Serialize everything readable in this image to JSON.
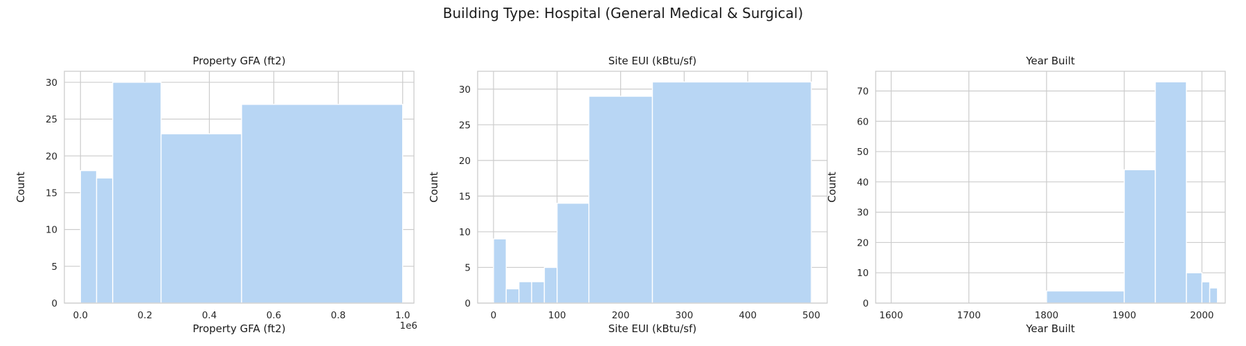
{
  "figure": {
    "suptitle": "Building Type: Hospital (General Medical & Surgical)"
  },
  "colors": {
    "bar": "#b8d6f4",
    "grid": "#cccccc",
    "background": "#ffffff"
  },
  "chart_data": [
    {
      "type": "bar",
      "subtype": "histogram",
      "title": "Property GFA (ft2)",
      "xlabel": "Property GFA (ft2)",
      "ylabel": "Count",
      "x_offset_label": "1e6",
      "xlim": [
        -0.05,
        1.035
      ],
      "ylim": [
        0,
        31.5
      ],
      "xticks": [
        0.0,
        0.2,
        0.4,
        0.6,
        0.8,
        1.0
      ],
      "xtick_labels": [
        "0.0",
        "0.2",
        "0.4",
        "0.6",
        "0.8",
        "1.0"
      ],
      "yticks": [
        0,
        5,
        10,
        15,
        20,
        25,
        30
      ],
      "grid": true,
      "bins": [
        {
          "x0": 0.0,
          "x1": 0.05,
          "count": 18
        },
        {
          "x0": 0.05,
          "x1": 0.1,
          "count": 17
        },
        {
          "x0": 0.1,
          "x1": 0.25,
          "count": 30
        },
        {
          "x0": 0.25,
          "x1": 0.5,
          "count": 23
        },
        {
          "x0": 0.5,
          "x1": 1.0,
          "count": 27
        }
      ]
    },
    {
      "type": "bar",
      "subtype": "histogram",
      "title": "Site EUI (kBtu/sf)",
      "xlabel": "Site EUI (kBtu/sf)",
      "ylabel": "Count",
      "xlim": [
        -25,
        525
      ],
      "ylim": [
        0,
        32.5
      ],
      "xticks": [
        0,
        100,
        200,
        300,
        400,
        500
      ],
      "xtick_labels": [
        "0",
        "100",
        "200",
        "300",
        "400",
        "500"
      ],
      "yticks": [
        0,
        5,
        10,
        15,
        20,
        25,
        30
      ],
      "grid": true,
      "bins": [
        {
          "x0": 0,
          "x1": 20,
          "count": 9
        },
        {
          "x0": 20,
          "x1": 40,
          "count": 2
        },
        {
          "x0": 40,
          "x1": 60,
          "count": 3
        },
        {
          "x0": 60,
          "x1": 80,
          "count": 3
        },
        {
          "x0": 80,
          "x1": 100,
          "count": 5
        },
        {
          "x0": 100,
          "x1": 150,
          "count": 14
        },
        {
          "x0": 150,
          "x1": 250,
          "count": 29
        },
        {
          "x0": 250,
          "x1": 500,
          "count": 31
        }
      ]
    },
    {
      "type": "bar",
      "subtype": "histogram",
      "title": "Year Built",
      "xlabel": "Year Built",
      "ylabel": "Count",
      "xlim": [
        1580,
        2030
      ],
      "ylim": [
        0,
        76.5
      ],
      "xticks": [
        1600,
        1700,
        1800,
        1900,
        2000
      ],
      "xtick_labels": [
        "1600",
        "1700",
        "1800",
        "1900",
        "2000"
      ],
      "yticks": [
        0,
        10,
        20,
        30,
        40,
        50,
        60,
        70
      ],
      "grid": true,
      "bins": [
        {
          "x0": 1800,
          "x1": 1900,
          "count": 4
        },
        {
          "x0": 1900,
          "x1": 1940,
          "count": 44
        },
        {
          "x0": 1940,
          "x1": 1980,
          "count": 73
        },
        {
          "x0": 1980,
          "x1": 2000,
          "count": 10
        },
        {
          "x0": 2000,
          "x1": 2010,
          "count": 7
        },
        {
          "x0": 2010,
          "x1": 2020,
          "count": 5
        }
      ]
    }
  ]
}
